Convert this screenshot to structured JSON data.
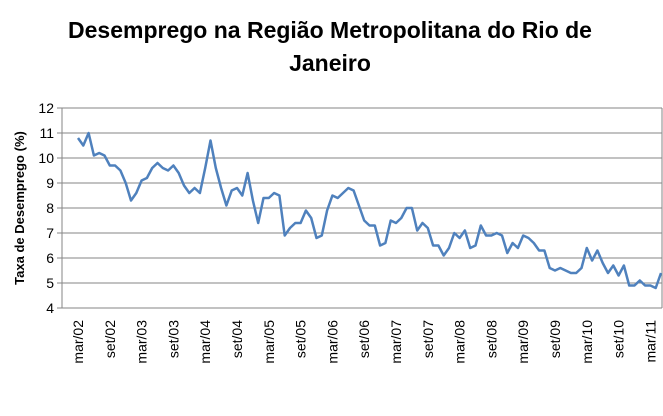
{
  "chart_data": {
    "type": "line",
    "title": "Desemprego na Região Metropolitana do Rio de Janeiro",
    "y_label": "Taxa de Desemprego (%)",
    "categories": [
      "mar/02",
      null,
      null,
      null,
      null,
      null,
      "set/02",
      null,
      null,
      null,
      null,
      null,
      "mar/03",
      null,
      null,
      null,
      null,
      null,
      "set/03",
      null,
      null,
      null,
      null,
      null,
      "mar/04",
      null,
      null,
      null,
      null,
      null,
      "set/04",
      null,
      null,
      null,
      null,
      null,
      "mar/05",
      null,
      null,
      null,
      null,
      null,
      "set/05",
      null,
      null,
      null,
      null,
      null,
      "mar/06",
      null,
      null,
      null,
      null,
      null,
      "set/06",
      null,
      null,
      null,
      null,
      null,
      "mar/07",
      null,
      null,
      null,
      null,
      null,
      "set/07",
      null,
      null,
      null,
      null,
      null,
      "mar/08",
      null,
      null,
      null,
      null,
      null,
      "set/08",
      null,
      null,
      null,
      null,
      null,
      "mar/09",
      null,
      null,
      null,
      null,
      null,
      "set/09",
      null,
      null,
      null,
      null,
      null,
      "mar/10",
      null,
      null,
      null,
      null,
      null,
      "set/10",
      null,
      null,
      null,
      null,
      null,
      "mar/11",
      null,
      null
    ],
    "series": [
      {
        "name": "Taxa de Desemprego (%)",
        "color": "#4f81bd",
        "values": [
          10.8,
          10.5,
          11.0,
          10.1,
          10.2,
          10.1,
          9.7,
          9.7,
          9.5,
          9.0,
          8.3,
          8.6,
          9.1,
          9.2,
          9.6,
          9.8,
          9.6,
          9.5,
          9.7,
          9.4,
          8.9,
          8.6,
          8.8,
          8.6,
          9.6,
          10.7,
          9.6,
          8.8,
          8.1,
          8.7,
          8.8,
          8.5,
          9.4,
          8.3,
          7.4,
          8.4,
          8.4,
          8.6,
          8.5,
          6.9,
          7.2,
          7.4,
          7.4,
          7.9,
          7.6,
          6.8,
          6.9,
          7.9,
          8.5,
          8.4,
          8.6,
          8.8,
          8.7,
          8.1,
          7.5,
          7.3,
          7.3,
          6.5,
          6.6,
          7.5,
          7.4,
          7.6,
          8.0,
          8.0,
          7.1,
          7.4,
          7.2,
          6.5,
          6.5,
          6.1,
          6.4,
          7.0,
          6.8,
          7.1,
          6.4,
          6.5,
          7.3,
          6.9,
          6.9,
          7.0,
          6.9,
          6.2,
          6.6,
          6.4,
          6.9,
          6.8,
          6.6,
          6.3,
          6.3,
          5.6,
          5.5,
          5.6,
          5.5,
          5.4,
          5.4,
          5.6,
          6.4,
          5.9,
          6.3,
          5.8,
          5.4,
          5.7,
          5.3,
          5.7,
          4.9,
          4.9,
          5.1,
          4.9,
          4.9,
          4.8,
          5.4
        ]
      }
    ],
    "ylim": [
      4,
      12
    ],
    "yticks": [
      4,
      5,
      6,
      7,
      8,
      9,
      10,
      11,
      12
    ],
    "grid": true
  }
}
